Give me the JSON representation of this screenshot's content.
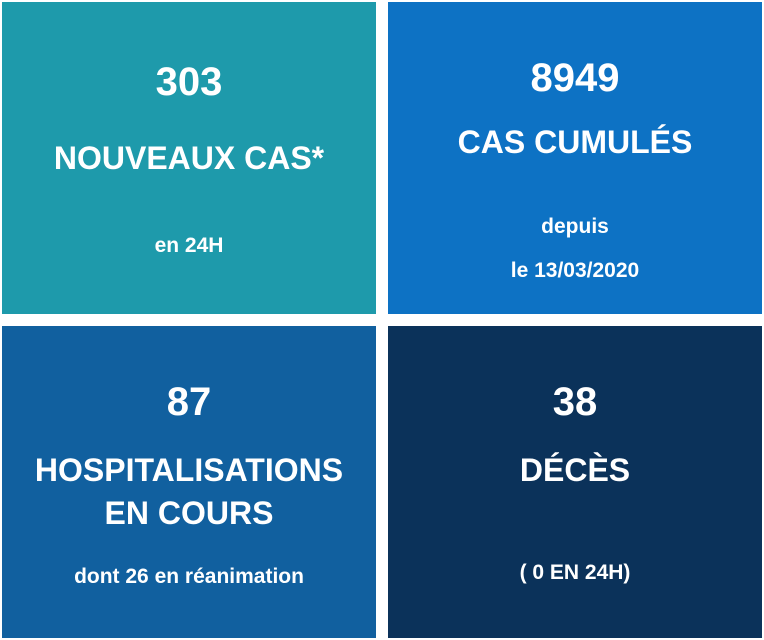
{
  "colors": {
    "teal": "#1E9AAB",
    "blue": "#0D72C4",
    "mid_blue": "#11609F",
    "navy": "#0B325A"
  },
  "tiles": [
    {
      "number": "303",
      "label": "NOUVEAUX CAS*",
      "sub": "en 24H"
    },
    {
      "number": "8949",
      "label": "CAS CUMULÉS",
      "sub1": "depuis",
      "sub2": "le 13/03/2020"
    },
    {
      "number": "87",
      "label1": "HOSPITALISATIONS",
      "label2": "EN COURS",
      "sub": "dont 26 en réanimation"
    },
    {
      "number": "38",
      "label": "DÉCÈS",
      "sub": "( 0 EN 24H)"
    }
  ]
}
